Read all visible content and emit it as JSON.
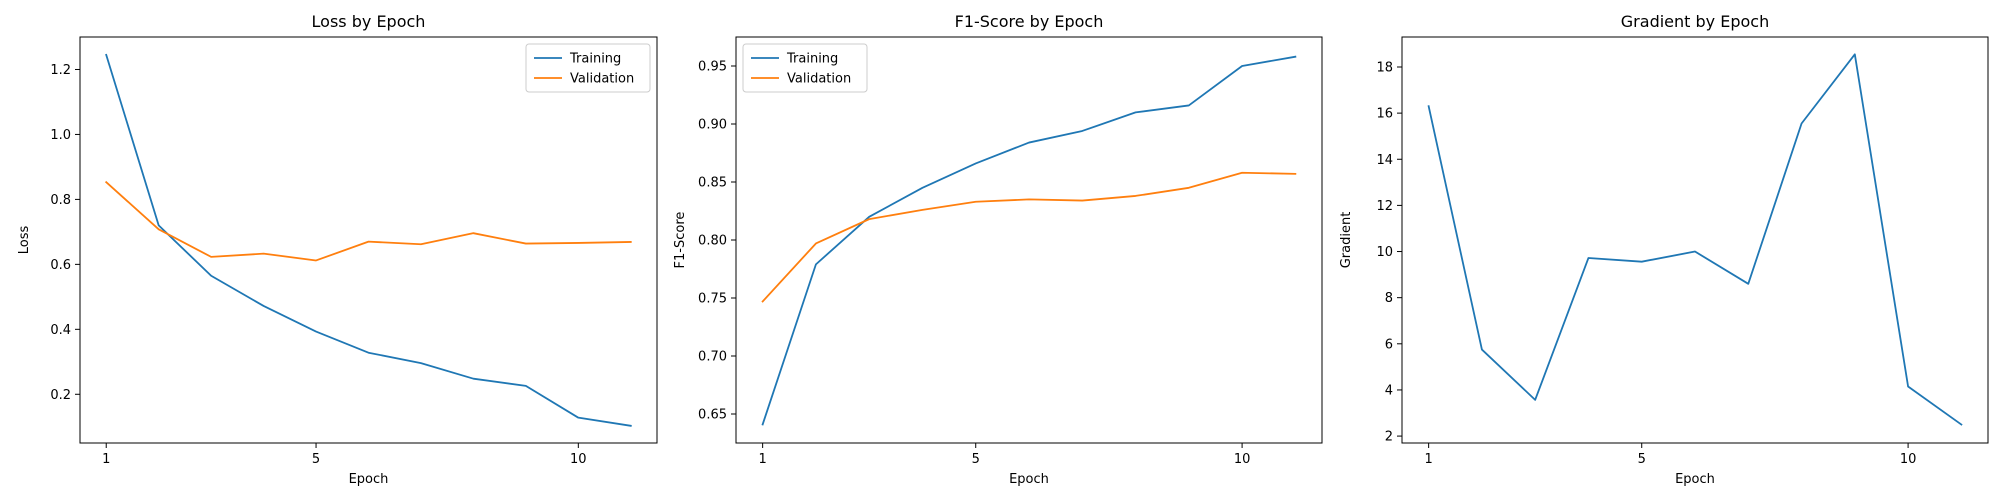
{
  "colors": {
    "training": "#1f77b4",
    "validation": "#ff7f0e"
  },
  "chart_data": [
    {
      "type": "line",
      "title": "Loss by Epoch",
      "xlabel": "Epoch",
      "ylabel": "Loss",
      "x": [
        1,
        2,
        3,
        4,
        5,
        6,
        7,
        8,
        9,
        10,
        11
      ],
      "xticks": [
        1,
        5,
        10
      ],
      "xlim": [
        0.5,
        11.5
      ],
      "yticks": [
        0.2,
        0.4,
        0.6,
        0.8,
        1.0,
        1.2
      ],
      "yticklabels": [
        "0.2",
        "0.4",
        "0.6",
        "0.8",
        "1.0",
        "1.2"
      ],
      "ylim": [
        0.05,
        1.3
      ],
      "grid": false,
      "legend": "top-right",
      "series": [
        {
          "name": "Training",
          "color": "#1f77b4",
          "values": [
            1.245,
            0.72,
            0.565,
            0.472,
            0.393,
            0.328,
            0.296,
            0.248,
            0.226,
            0.128,
            0.103
          ]
        },
        {
          "name": "Validation",
          "color": "#ff7f0e",
          "values": [
            0.853,
            0.708,
            0.623,
            0.633,
            0.612,
            0.67,
            0.662,
            0.696,
            0.664,
            0.666,
            0.669
          ]
        }
      ]
    },
    {
      "type": "line",
      "title": "F1-Score by Epoch",
      "xlabel": "Epoch",
      "ylabel": "F1-Score",
      "x": [
        1,
        2,
        3,
        4,
        5,
        6,
        7,
        8,
        9,
        10,
        11
      ],
      "xticks": [
        1,
        5,
        10
      ],
      "xlim": [
        0.5,
        11.5
      ],
      "yticks": [
        0.65,
        0.7,
        0.75,
        0.8,
        0.85,
        0.9,
        0.95
      ],
      "yticklabels": [
        "0.65",
        "0.70",
        "0.75",
        "0.80",
        "0.85",
        "0.90",
        "0.95"
      ],
      "ylim": [
        0.625,
        0.975
      ],
      "grid": false,
      "legend": "top-left",
      "series": [
        {
          "name": "Training",
          "color": "#1f77b4",
          "values": [
            0.641,
            0.779,
            0.82,
            0.845,
            0.866,
            0.884,
            0.894,
            0.91,
            0.916,
            0.95,
            0.958
          ]
        },
        {
          "name": "Validation",
          "color": "#ff7f0e",
          "values": [
            0.747,
            0.797,
            0.818,
            0.826,
            0.833,
            0.835,
            0.834,
            0.838,
            0.845,
            0.858,
            0.857
          ]
        }
      ]
    },
    {
      "type": "line",
      "title": "Gradient by Epoch",
      "xlabel": "Epoch",
      "ylabel": "Gradient",
      "x": [
        1,
        2,
        3,
        4,
        5,
        6,
        7,
        8,
        9,
        10,
        11
      ],
      "xticks": [
        1,
        5,
        10
      ],
      "xlim": [
        0.5,
        11.5
      ],
      "yticks": [
        2,
        4,
        6,
        8,
        10,
        12,
        14,
        16,
        18
      ],
      "yticklabels": [
        "2",
        "4",
        "6",
        "8",
        "10",
        "12",
        "14",
        "16",
        "18"
      ],
      "ylim": [
        1.7,
        19.3
      ],
      "grid": false,
      "legend": "none",
      "series": [
        {
          "name": "",
          "color": "#1f77b4",
          "values": [
            16.3,
            5.75,
            3.57,
            9.72,
            9.56,
            10.0,
            8.6,
            15.55,
            18.55,
            4.15,
            2.5
          ]
        }
      ]
    }
  ]
}
